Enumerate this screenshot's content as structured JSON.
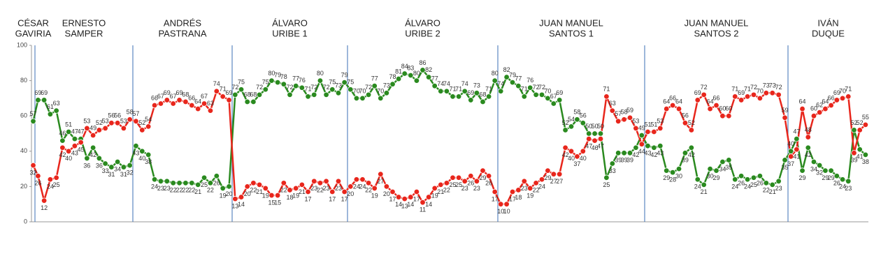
{
  "chart_data": {
    "type": "line",
    "ylim": [
      0,
      100
    ],
    "yticks": [
      0,
      20,
      40,
      60,
      80,
      100
    ],
    "series": [
      {
        "color": "#2a8a1f"
      },
      {
        "color": "#e8261c"
      }
    ],
    "periods": [
      {
        "name": [
          "CÉSAR",
          "GAVIRIA"
        ],
        "values": [
          [
            57
          ],
          [
            32
          ]
        ]
      },
      {
        "name": [
          "ERNESTO",
          "SAMPER"
        ],
        "values": [
          [
            69,
            69,
            61,
            63,
            46,
            51,
            47,
            47,
            36,
            42,
            36,
            33,
            31,
            34,
            31,
            32
          ],
          [
            26,
            12,
            24,
            25,
            42,
            40,
            43,
            45,
            53,
            49,
            52,
            53,
            56,
            56,
            53,
            58
          ]
        ]
      },
      {
        "name": [
          "ANDRÉS",
          "PASTRANA"
        ],
        "values": [
          [
            43,
            40,
            38,
            24,
            23,
            23,
            22,
            22,
            22,
            22,
            21,
            25,
            22,
            26,
            19,
            20
          ],
          [
            57,
            52,
            54,
            66,
            67,
            69,
            67,
            69,
            68,
            66,
            64,
            67,
            63,
            74,
            71,
            69
          ]
        ]
      },
      {
        "name": [
          "ÁLVARO",
          "URIBE 1"
        ],
        "values": [
          [
            72,
            75,
            68,
            68,
            72,
            75,
            80,
            79,
            78,
            72,
            77,
            76,
            71,
            72,
            80,
            72,
            75,
            73,
            79
          ],
          [
            13,
            14,
            20,
            22,
            21,
            19,
            15,
            15,
            22,
            18,
            19,
            21,
            17,
            23,
            22,
            23,
            17,
            23,
            17
          ]
        ]
      },
      {
        "name": [
          "ÁLVARO",
          "URIBE 2"
        ],
        "values": [
          [
            75,
            70,
            70,
            72,
            77,
            70,
            73,
            78,
            81,
            84,
            83,
            80,
            86,
            82,
            77,
            74,
            74,
            71,
            71,
            74,
            69,
            73,
            68,
            71,
            80
          ],
          [
            20,
            24,
            24,
            22,
            19,
            27,
            20,
            17,
            14,
            13,
            14,
            17,
            11,
            14,
            19,
            21,
            22,
            25,
            25,
            23,
            26,
            23,
            29,
            26,
            17
          ]
        ]
      },
      {
        "name": [
          "JUAN MANUEL",
          "SANTOS 1"
        ],
        "values": [
          [
            74,
            82,
            79,
            77,
            71,
            76,
            72,
            72,
            70,
            67,
            69,
            52,
            54,
            58,
            56,
            50,
            50,
            50,
            25,
            33,
            39,
            39,
            39,
            42,
            49
          ],
          [
            10,
            10,
            17,
            18,
            23,
            19,
            22,
            24,
            29,
            27,
            27,
            42,
            40,
            37,
            40,
            47,
            46,
            47,
            71,
            63,
            57,
            58,
            59,
            53,
            44
          ]
        ]
      },
      {
        "name": [
          "JUAN MANUEL",
          "SANTOS 2"
        ],
        "values": [
          [
            43,
            42,
            43,
            29,
            28,
            30,
            39,
            42,
            24,
            21,
            30,
            29,
            34,
            35,
            24,
            26,
            24,
            25,
            26,
            22,
            21,
            23,
            35
          ],
          [
            51,
            51,
            53,
            64,
            66,
            64,
            56,
            52,
            69,
            72,
            64,
            66,
            60,
            60,
            71,
            69,
            71,
            72,
            70,
            73,
            73,
            72,
            59
          ]
        ]
      },
      {
        "name": [
          "IVÁN",
          "DUQUE"
        ],
        "values": [
          [
            40,
            47,
            29,
            42,
            34,
            32,
            29,
            29,
            26,
            24,
            23,
            52,
            41,
            38
          ],
          [
            37,
            41,
            64,
            48,
            60,
            62,
            64,
            66,
            69,
            70,
            71,
            39,
            52,
            55
          ]
        ]
      }
    ]
  }
}
